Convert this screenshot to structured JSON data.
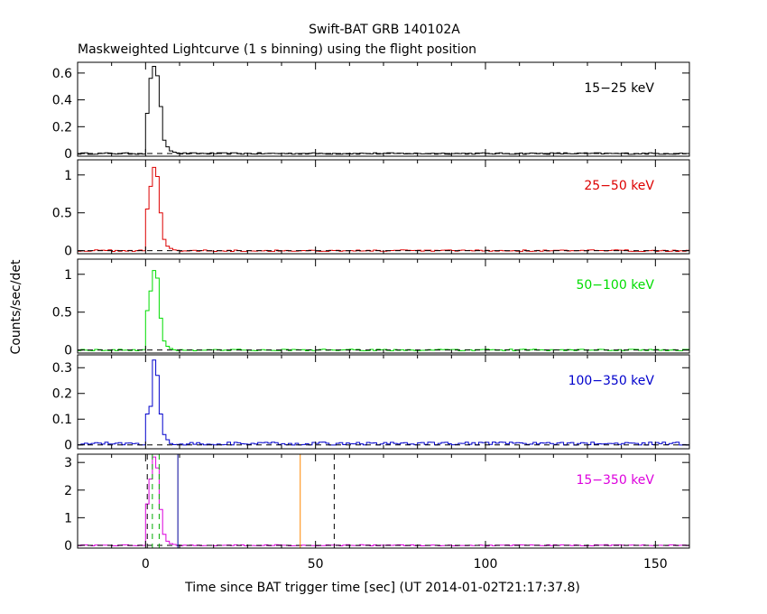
{
  "chart_data": {
    "type": "line",
    "title": "Swift-BAT GRB 140102A",
    "subtitle": "Maskweighted Lightcurve (1 s binning) using the flight position",
    "xlabel": "Time since BAT trigger time [sec] (UT 2014-01-02T21:17:37.8)",
    "ylabel": "Counts/sec/det",
    "xlim": [
      -20,
      160
    ],
    "xticks": [
      0,
      50,
      100,
      150
    ],
    "panels": [
      {
        "label": "15−25 keV",
        "color": "#000000",
        "ylim": [
          -0.02,
          0.68
        ],
        "yticks": [
          0,
          0.2,
          0.4,
          0.6
        ],
        "ytick_labels": [
          "0",
          "0.2",
          "0.4",
          "0.6"
        ],
        "baseline": 0,
        "burst": [
          [
            0,
            0.3
          ],
          [
            1,
            0.56
          ],
          [
            2,
            0.65
          ],
          [
            3,
            0.58
          ],
          [
            4,
            0.35
          ],
          [
            5,
            0.1
          ],
          [
            6,
            0.05
          ],
          [
            7,
            0.02
          ],
          [
            8,
            0.01
          ]
        ],
        "noise": 0.006
      },
      {
        "label": "25−50 keV",
        "color": "#dd0000",
        "ylim": [
          -0.04,
          1.2
        ],
        "yticks": [
          0,
          0.5,
          1
        ],
        "ytick_labels": [
          "0",
          "0.5",
          "1"
        ],
        "baseline": 0,
        "burst": [
          [
            0,
            0.55
          ],
          [
            1,
            0.85
          ],
          [
            2,
            1.1
          ],
          [
            3,
            0.98
          ],
          [
            4,
            0.5
          ],
          [
            5,
            0.15
          ],
          [
            6,
            0.06
          ],
          [
            7,
            0.03
          ],
          [
            8,
            0.01
          ]
        ],
        "noise": 0.01
      },
      {
        "label": "50−100 keV",
        "color": "#00dd00",
        "ylim": [
          -0.04,
          1.2
        ],
        "yticks": [
          0,
          0.5,
          1
        ],
        "ytick_labels": [
          "0",
          "0.5",
          "1"
        ],
        "baseline": 0,
        "burst": [
          [
            0,
            0.52
          ],
          [
            1,
            0.78
          ],
          [
            2,
            1.05
          ],
          [
            3,
            0.95
          ],
          [
            4,
            0.42
          ],
          [
            5,
            0.12
          ],
          [
            6,
            0.05
          ],
          [
            7,
            0.02
          ]
        ],
        "noise": 0.01
      },
      {
        "label": "100−350 keV",
        "color": "#0000cc",
        "ylim": [
          -0.015,
          0.35
        ],
        "yticks": [
          0,
          0.1,
          0.2,
          0.3
        ],
        "ytick_labels": [
          "0",
          "0.1",
          "0.2",
          "0.3"
        ],
        "baseline": 0.005,
        "burst": [
          [
            0,
            0.12
          ],
          [
            1,
            0.15
          ],
          [
            2,
            0.33
          ],
          [
            3,
            0.27
          ],
          [
            4,
            0.12
          ],
          [
            5,
            0.04
          ],
          [
            6,
            0.02
          ]
        ],
        "noise": 0.006
      },
      {
        "label": "15−350 keV",
        "color": "#dd00dd",
        "ylim": [
          -0.1,
          3.3
        ],
        "yticks": [
          0,
          1,
          2,
          3
        ],
        "ytick_labels": [
          "0",
          "1",
          "2",
          "3"
        ],
        "baseline": 0,
        "burst": [
          [
            0,
            1.5
          ],
          [
            1,
            2.4
          ],
          [
            2,
            3.2
          ],
          [
            3,
            2.8
          ],
          [
            4,
            1.3
          ],
          [
            5,
            0.4
          ],
          [
            6,
            0.15
          ],
          [
            7,
            0.06
          ],
          [
            8,
            0.03
          ]
        ],
        "noise": 0.02,
        "vlines": [
          {
            "x": 0.5,
            "color": "#000000",
            "style": "dashed"
          },
          {
            "x": 2.0,
            "color": "#00aa00",
            "style": "dashed"
          },
          {
            "x": 4.0,
            "color": "#00aa00",
            "style": "dashed"
          },
          {
            "x": 9.5,
            "color": "#000099",
            "style": "solid"
          },
          {
            "x": 45.5,
            "color": "#ff8800",
            "style": "solid"
          },
          {
            "x": 55.5,
            "color": "#000000",
            "style": "dashed"
          }
        ]
      }
    ]
  }
}
